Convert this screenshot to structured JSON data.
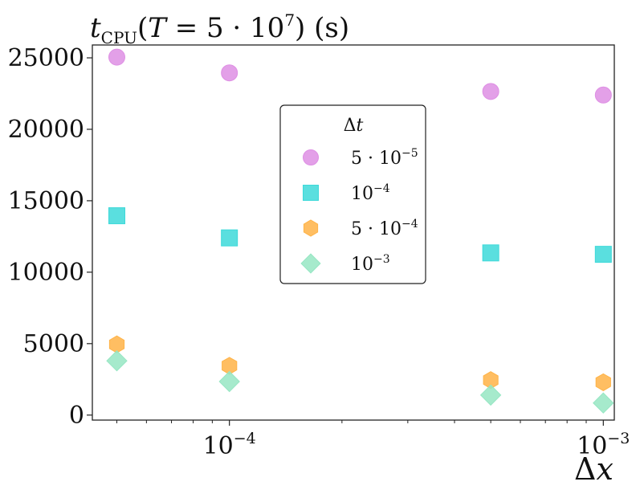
{
  "chart_data": {
    "type": "scatter",
    "title": "t_CPU(T = 5 · 10^7) (s)",
    "xlabel": "Δx",
    "ylabel": "",
    "x_scale": "log",
    "xlim": [
      4.3e-05,
      0.00107
    ],
    "ylim": [
      -350,
      25900
    ],
    "x_tick_labels": [
      {
        "value": 0.0001,
        "text": "10^-4"
      },
      {
        "value": 0.001,
        "text": "10^-3"
      }
    ],
    "y_tick_labels": [
      "0",
      "5000",
      "10000",
      "15000",
      "20000",
      "25000"
    ],
    "y_ticks": [
      0,
      5000,
      10000,
      15000,
      20000,
      25000
    ],
    "grid": false,
    "legend": {
      "title": "Δt",
      "placement": "upper center"
    },
    "series": [
      {
        "name": "5 · 10^-5",
        "marker": "circle",
        "color": "#de8fe4",
        "x": [
          5e-05,
          0.0001,
          0.0005,
          0.001
        ],
        "y": [
          25050,
          23950,
          22650,
          22400
        ]
      },
      {
        "name": "10^-4",
        "marker": "square",
        "color": "#3dd9d9",
        "x": [
          5e-05,
          0.0001,
          0.0005,
          0.001
        ],
        "y": [
          13950,
          12400,
          11350,
          11250
        ]
      },
      {
        "name": "5 · 10^-4",
        "marker": "hexagon",
        "color": "#ffb347",
        "x": [
          5e-05,
          0.0001,
          0.0005,
          0.001
        ],
        "y": [
          4950,
          3450,
          2450,
          2300
        ]
      },
      {
        "name": "10^-3",
        "marker": "diamond",
        "color": "#96e6c3",
        "x": [
          5e-05,
          0.0001,
          0.0005,
          0.001
        ],
        "y": [
          3800,
          2350,
          1400,
          850
        ]
      }
    ]
  }
}
